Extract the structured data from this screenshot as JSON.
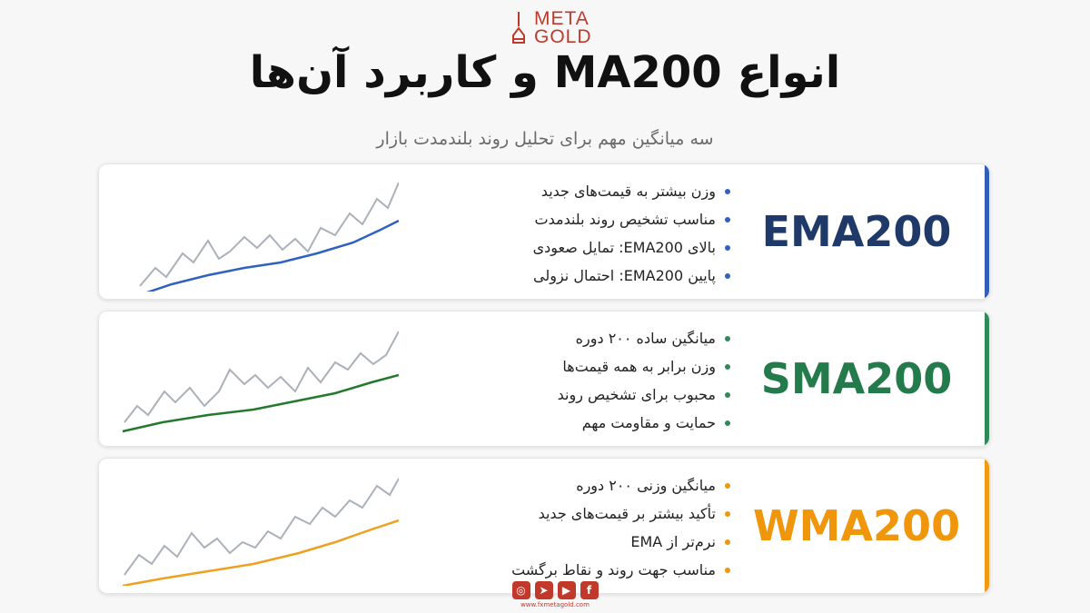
{
  "logo": {
    "line1": "META",
    "line2": "GOLD"
  },
  "title": "انواع MA200 و کاربرد آن‌ها",
  "subtitle": "سه میانگین مهم برای تحلیل روند بلندمدت بازار",
  "cards": [
    {
      "label": "EMA200",
      "color": "#1f3a68",
      "accent": "#2f5fb8",
      "line_color": "#2f62c0",
      "bullet_color": "#2f62c0",
      "items": [
        "وزن بیشتر به قیمت‌های جدید",
        "مناسب تشخیص روند بلندمدت",
        "بالای EMA200: تمایل صعودی",
        "پایین EMA200: احتمال نزولی"
      ]
    },
    {
      "label": "SMA200",
      "color": "#237a4a",
      "accent": "#2e8b57",
      "line_color": "#237a2c",
      "bullet_color": "#2e8b57",
      "items": [
        "میانگین ساده ۲۰۰ دوره",
        "وزن برابر به همه قیمت‌ها",
        "محبوب برای تشخیص روند",
        "حمایت و مقاومت مهم"
      ]
    },
    {
      "label": "WMA200",
      "color": "#f0960a",
      "accent": "#f29a12",
      "line_color": "#f0a020",
      "bullet_color": "#f0960a",
      "items": [
        "میانگین وزنی ۲۰۰ دوره",
        "تأکید بیشتر بر قیمت‌های جدید",
        "نرم‌تر از EMA",
        "مناسب جهت روند و نقاط برگشت"
      ]
    }
  ],
  "social": {
    "icons": [
      "instagram-icon",
      "telegram-icon",
      "youtube-icon",
      "facebook-icon"
    ],
    "url": "www.fxmetagold.com"
  }
}
